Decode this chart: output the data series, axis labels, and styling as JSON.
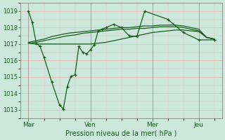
{
  "xlabel": "Pression niveau de la mer( hPa )",
  "bg_color": "#cce8dd",
  "grid_color": "#ff9999",
  "line_color": "#1a5c1a",
  "ylim": [
    1012.5,
    1019.5
  ],
  "yticks": [
    1013,
    1014,
    1015,
    1016,
    1017,
    1018,
    1019
  ],
  "xlim_min": -2,
  "xlim_max": 50,
  "xtick_positions": [
    0,
    16,
    32,
    44
  ],
  "xtick_labels": [
    "Mar",
    "Ven",
    "Mer",
    "Jeu"
  ],
  "vline_positions": [
    0,
    16,
    32,
    44
  ],
  "n_points": 27,
  "line1_x": [
    0,
    1,
    2,
    3,
    4,
    6,
    8,
    9,
    10,
    11,
    12,
    13,
    14,
    15,
    16,
    17,
    18,
    19,
    20,
    22,
    24,
    26,
    28,
    30,
    36,
    40,
    44,
    48
  ],
  "line1_y": [
    1019.0,
    1018.3,
    1017.05,
    1016.85,
    1016.2,
    1014.7,
    1013.3,
    1013.05,
    1014.4,
    1015.05,
    1015.1,
    1016.85,
    1016.5,
    1016.4,
    1016.65,
    1016.95,
    1017.8,
    1017.9,
    1018.0,
    1018.2,
    1018.0,
    1017.5,
    1017.45,
    1019.0,
    1018.5,
    1017.7,
    1017.25,
    1017.25
  ],
  "line2_x": [
    0,
    2,
    4,
    6,
    8,
    10,
    12,
    14,
    16,
    18,
    20,
    22,
    24,
    26,
    28,
    30,
    32,
    34,
    36,
    38,
    40,
    42,
    44,
    46,
    48
  ],
  "line2_y": [
    1017.05,
    1017.0,
    1017.0,
    1017.0,
    1017.0,
    1017.0,
    1017.0,
    1017.0,
    1017.0,
    1017.05,
    1017.1,
    1017.2,
    1017.3,
    1017.4,
    1017.5,
    1017.6,
    1017.7,
    1017.75,
    1017.8,
    1017.85,
    1017.85,
    1017.8,
    1017.75,
    1017.4,
    1017.3
  ],
  "line3_x": [
    0,
    2,
    4,
    6,
    8,
    10,
    12,
    14,
    16,
    18,
    20,
    22,
    24,
    26,
    28,
    30,
    32,
    34,
    36,
    38,
    40,
    42,
    44,
    46,
    48
  ],
  "line3_y": [
    1017.05,
    1017.1,
    1017.2,
    1017.3,
    1017.4,
    1017.5,
    1017.55,
    1017.65,
    1017.7,
    1017.75,
    1017.8,
    1017.85,
    1017.9,
    1017.9,
    1017.95,
    1017.95,
    1018.0,
    1018.05,
    1018.05,
    1018.05,
    1018.0,
    1017.9,
    1017.8,
    1017.4,
    1017.3
  ],
  "line4_x": [
    0,
    2,
    4,
    6,
    8,
    10,
    12,
    14,
    16,
    18,
    20,
    22,
    24,
    26,
    28,
    30,
    32,
    34,
    36,
    38,
    40,
    42,
    44,
    46,
    48
  ],
  "line4_y": [
    1017.1,
    1017.2,
    1017.3,
    1017.45,
    1017.55,
    1017.65,
    1017.7,
    1017.75,
    1017.8,
    1017.85,
    1017.9,
    1017.95,
    1018.0,
    1018.0,
    1018.05,
    1018.1,
    1018.1,
    1018.15,
    1018.15,
    1018.15,
    1018.1,
    1018.0,
    1017.9,
    1017.4,
    1017.3
  ]
}
